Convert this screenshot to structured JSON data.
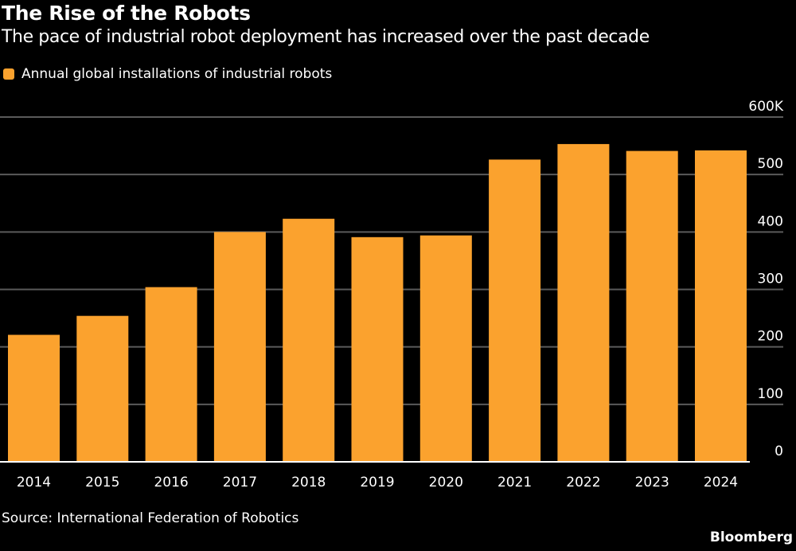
{
  "title": "The Rise of the Robots",
  "subtitle": "The pace of industrial robot deployment has increased over the past decade",
  "legend": {
    "label": "Annual global installations of industrial robots",
    "color": "#FBA22E"
  },
  "source": "Source: International Federation of Robotics",
  "brand": "Bloomberg",
  "chart_data": {
    "type": "bar",
    "categories": [
      "2014",
      "2015",
      "2016",
      "2017",
      "2018",
      "2019",
      "2020",
      "2021",
      "2022",
      "2023",
      "2024"
    ],
    "series": [
      {
        "name": "Annual global installations of industrial robots",
        "values": [
          221,
          254,
          304,
          400,
          423,
          391,
          394,
          526,
          553,
          541,
          542
        ],
        "color": "#FBA22E"
      }
    ],
    "ylim": [
      0,
      600
    ],
    "yticks": [
      0,
      100,
      200,
      300,
      400,
      500,
      600
    ],
    "ytick_labels": [
      "0",
      "100",
      "200",
      "300",
      "400",
      "500",
      "600K"
    ],
    "yaxis_position": "right",
    "grid": true,
    "legend_position": "top-left"
  }
}
